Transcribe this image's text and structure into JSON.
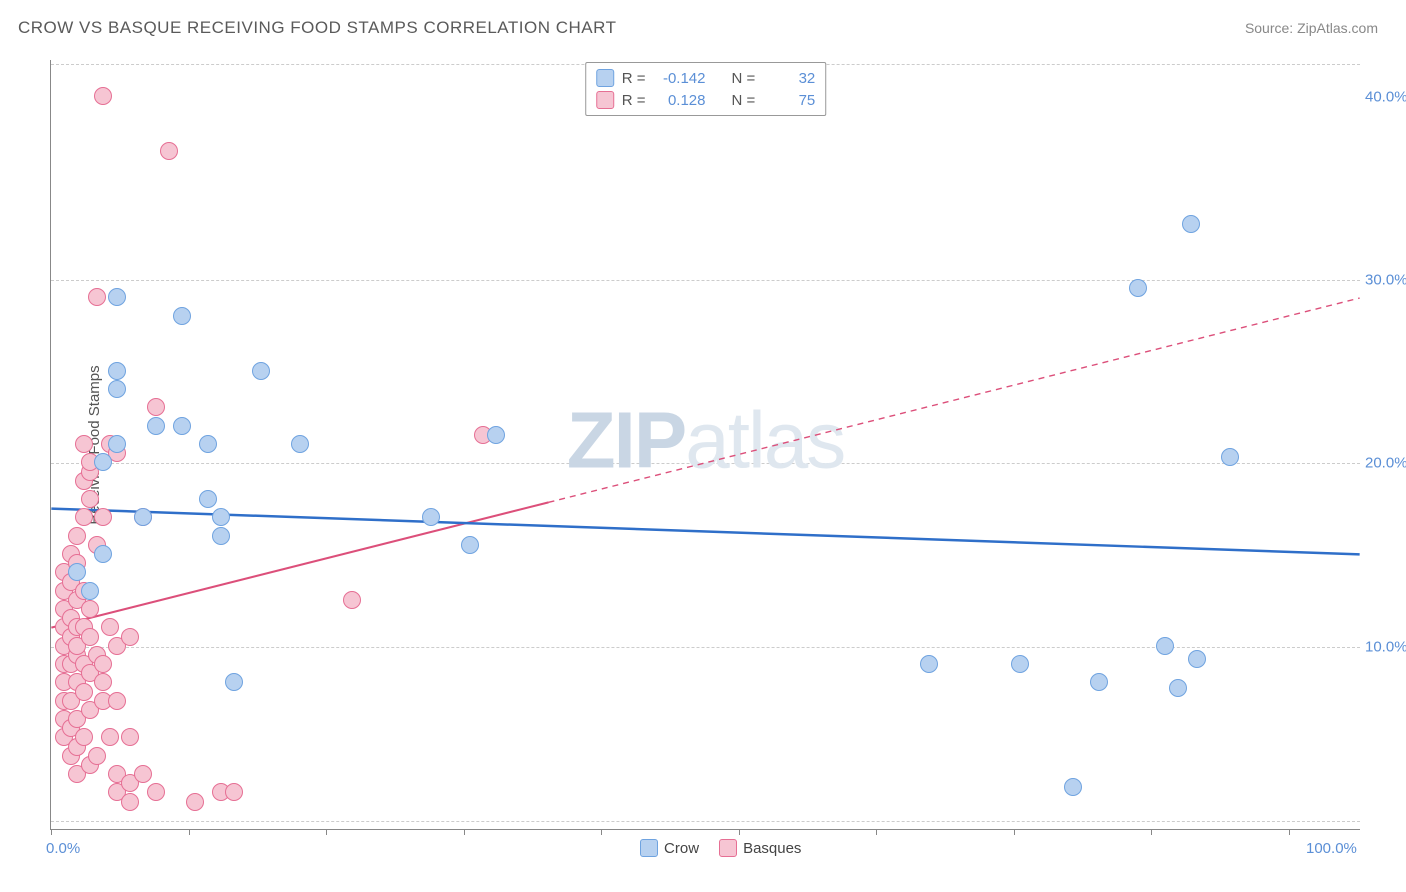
{
  "header": {
    "title": "CROW VS BASQUE RECEIVING FOOD STAMPS CORRELATION CHART",
    "source": "Source: ZipAtlas.com"
  },
  "watermark": {
    "zip": "ZIP",
    "atlas": "atlas"
  },
  "chart": {
    "type": "scatter",
    "ylabel": "Receiving Food Stamps",
    "xlim": [
      0,
      100
    ],
    "ylim": [
      0,
      42
    ],
    "xtick_marks": [
      0,
      10.5,
      21,
      31.5,
      42,
      52.5,
      63,
      73.5,
      84,
      94.5
    ],
    "xtick_labels": [
      {
        "pos": 0,
        "text": "0.0%"
      },
      {
        "pos": 100,
        "text": "100.0%"
      }
    ],
    "ytick_labels": [
      {
        "pos": 10,
        "text": "10.0%"
      },
      {
        "pos": 20,
        "text": "20.0%"
      },
      {
        "pos": 30,
        "text": "30.0%"
      },
      {
        "pos": 40,
        "text": "40.0%"
      }
    ],
    "gridlines_y": [
      0.5,
      10,
      20,
      30,
      41.8
    ],
    "background_color": "#ffffff",
    "grid_color": "#cccccc",
    "axis_color": "#888888",
    "tick_label_color": "#5b8fd6",
    "marker_radius": 9,
    "marker_stroke_width": 1.5
  },
  "series": {
    "crow": {
      "label": "Crow",
      "fill_color": "#b7d1f0",
      "stroke_color": "#6fa3e0",
      "swatch_fill": "#b7d1f0",
      "swatch_border": "#6fa3e0",
      "R": "-0.142",
      "N": "32",
      "trend": {
        "color": "#2f6fc9",
        "width": 2.5,
        "dash": "none",
        "x1": 0,
        "y1": 17.5,
        "x2": 100,
        "y2": 15.0,
        "solid_to_x": 100
      },
      "points": [
        [
          2,
          14
        ],
        [
          3,
          13
        ],
        [
          4,
          15
        ],
        [
          4,
          20
        ],
        [
          5,
          21
        ],
        [
          5,
          24
        ],
        [
          5,
          25
        ],
        [
          5,
          29
        ],
        [
          7,
          17
        ],
        [
          8,
          22
        ],
        [
          10,
          22
        ],
        [
          10,
          28
        ],
        [
          12,
          18
        ],
        [
          12,
          21
        ],
        [
          13,
          16
        ],
        [
          13,
          17
        ],
        [
          14,
          8
        ],
        [
          16,
          25
        ],
        [
          19,
          21
        ],
        [
          29,
          17
        ],
        [
          32,
          15.5
        ],
        [
          34,
          21.5
        ],
        [
          67,
          9
        ],
        [
          74,
          9
        ],
        [
          78,
          2.3
        ],
        [
          80,
          8
        ],
        [
          83,
          29.5
        ],
        [
          85,
          10
        ],
        [
          86,
          7.7
        ],
        [
          87,
          33
        ],
        [
          87.5,
          9.3
        ],
        [
          90,
          20.3
        ]
      ]
    },
    "basques": {
      "label": "Basques",
      "fill_color": "#f6c5d3",
      "stroke_color": "#e66f94",
      "swatch_fill": "#f6c5d3",
      "swatch_border": "#e66f94",
      "R": "0.128",
      "N": "75",
      "trend": {
        "color": "#dc4f7a",
        "width": 2,
        "dash": "6,5",
        "x1": 0,
        "y1": 11.0,
        "x2": 100,
        "y2": 29.0,
        "solid_to_x": 38
      },
      "points": [
        [
          1,
          5
        ],
        [
          1,
          6
        ],
        [
          1,
          7
        ],
        [
          1,
          8
        ],
        [
          1,
          9
        ],
        [
          1,
          10
        ],
        [
          1,
          11
        ],
        [
          1,
          12
        ],
        [
          1,
          13
        ],
        [
          1,
          14
        ],
        [
          1.5,
          4
        ],
        [
          1.5,
          5.5
        ],
        [
          1.5,
          7
        ],
        [
          1.5,
          9
        ],
        [
          1.5,
          10.5
        ],
        [
          1.5,
          11.5
        ],
        [
          1.5,
          13.5
        ],
        [
          1.5,
          15
        ],
        [
          2,
          3
        ],
        [
          2,
          4.5
        ],
        [
          2,
          6
        ],
        [
          2,
          8
        ],
        [
          2,
          9.5
        ],
        [
          2,
          10
        ],
        [
          2,
          11
        ],
        [
          2,
          12.5
        ],
        [
          2,
          14.5
        ],
        [
          2,
          16
        ],
        [
          2.5,
          5
        ],
        [
          2.5,
          7.5
        ],
        [
          2.5,
          9
        ],
        [
          2.5,
          11
        ],
        [
          2.5,
          13
        ],
        [
          2.5,
          17
        ],
        [
          2.5,
          19
        ],
        [
          2.5,
          21
        ],
        [
          3,
          3.5
        ],
        [
          3,
          6.5
        ],
        [
          3,
          8.5
        ],
        [
          3,
          10.5
        ],
        [
          3,
          12
        ],
        [
          3,
          18
        ],
        [
          3,
          19.5
        ],
        [
          3,
          20
        ],
        [
          3.5,
          4
        ],
        [
          3.5,
          9.5
        ],
        [
          3.5,
          15.5
        ],
        [
          3.5,
          29
        ],
        [
          4,
          7
        ],
        [
          4,
          8
        ],
        [
          4,
          9
        ],
        [
          4,
          17
        ],
        [
          4,
          40
        ],
        [
          4.5,
          5
        ],
        [
          4.5,
          11
        ],
        [
          4.5,
          21
        ],
        [
          5,
          2
        ],
        [
          5,
          3
        ],
        [
          5,
          7
        ],
        [
          5,
          10
        ],
        [
          5,
          20.5
        ],
        [
          6,
          1.5
        ],
        [
          6,
          2.5
        ],
        [
          6,
          5
        ],
        [
          6,
          10.5
        ],
        [
          7,
          3
        ],
        [
          7,
          17
        ],
        [
          8,
          2
        ],
        [
          8,
          23
        ],
        [
          9,
          37
        ],
        [
          11,
          1.5
        ],
        [
          13,
          2
        ],
        [
          14,
          2
        ],
        [
          23,
          12.5
        ],
        [
          33,
          21.5
        ]
      ]
    }
  },
  "stats_legend": {
    "r_label": "R =",
    "n_label": "N ="
  }
}
